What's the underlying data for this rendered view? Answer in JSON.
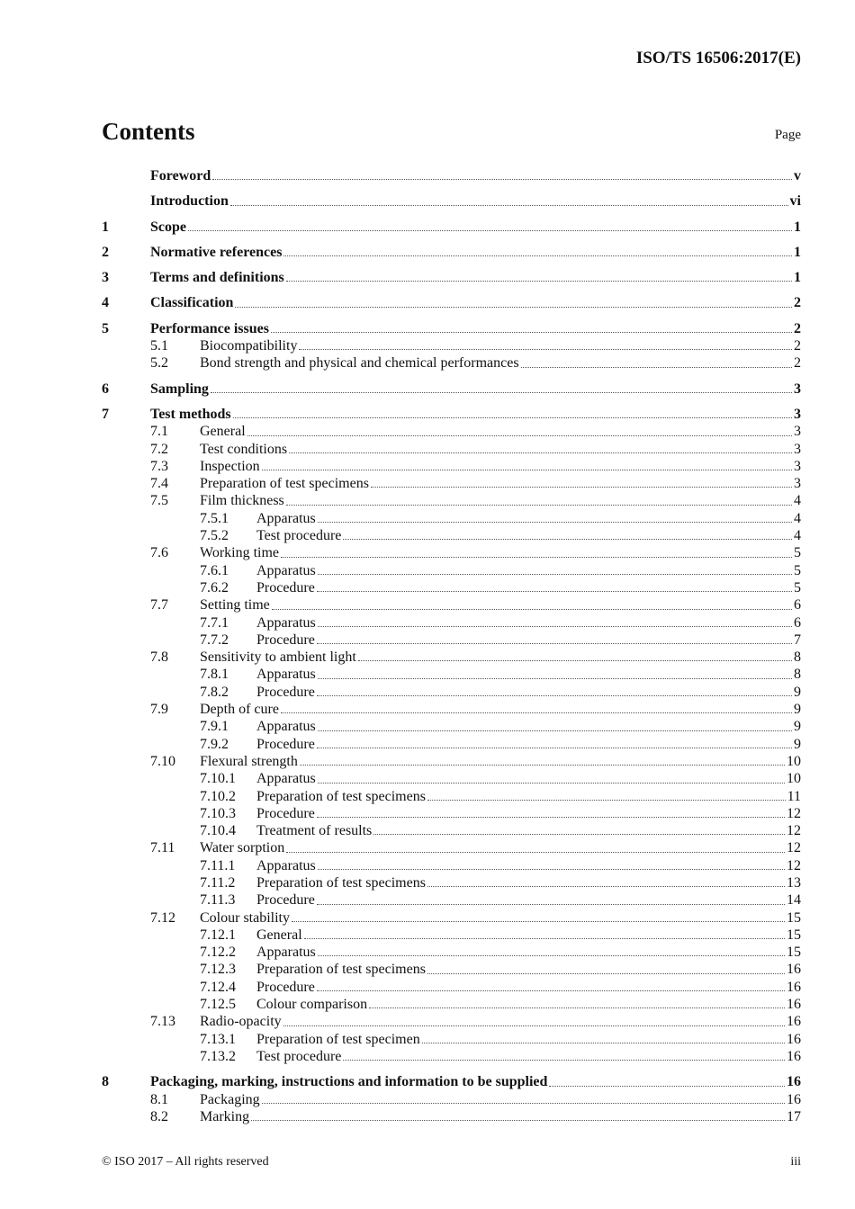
{
  "header": {
    "doc_id": "ISO/TS 16506:2017(E)"
  },
  "contents": {
    "title": "Contents",
    "page_label": "Page"
  },
  "entries": [
    {
      "level": 1,
      "num": "",
      "title": "Foreword",
      "page": "v"
    },
    {
      "level": 1,
      "num": "",
      "title": "Introduction",
      "page": "vi"
    },
    {
      "level": 1,
      "num": "1",
      "title": "Scope",
      "page": "1"
    },
    {
      "level": 1,
      "num": "2",
      "title": "Normative references",
      "page": "1"
    },
    {
      "level": 1,
      "num": "3",
      "title": "Terms and definitions",
      "page": "1"
    },
    {
      "level": 1,
      "num": "4",
      "title": "Classification",
      "page": "2"
    },
    {
      "level": 1,
      "num": "5",
      "title": "Performance issues",
      "page": "2"
    },
    {
      "level": 2,
      "num": "5.1",
      "title": "Biocompatibility",
      "page": "2"
    },
    {
      "level": 2,
      "num": "5.2",
      "title": "Bond strength and physical and chemical performances",
      "page": "2"
    },
    {
      "level": 1,
      "num": "6",
      "title": "Sampling",
      "page": "3"
    },
    {
      "level": 1,
      "num": "7",
      "title": "Test methods",
      "page": "3"
    },
    {
      "level": 2,
      "num": "7.1",
      "title": "General",
      "page": "3"
    },
    {
      "level": 2,
      "num": "7.2",
      "title": "Test conditions",
      "page": "3"
    },
    {
      "level": 2,
      "num": "7.3",
      "title": "Inspection",
      "page": "3"
    },
    {
      "level": 2,
      "num": "7.4",
      "title": "Preparation of test specimens",
      "page": "3"
    },
    {
      "level": 2,
      "num": "7.5",
      "title": "Film thickness",
      "page": "4"
    },
    {
      "level": 3,
      "num": "7.5.1",
      "title": "Apparatus",
      "page": "4"
    },
    {
      "level": 3,
      "num": "7.5.2",
      "title": "Test procedure",
      "page": "4"
    },
    {
      "level": 2,
      "num": "7.6",
      "title": "Working time",
      "page": "5"
    },
    {
      "level": 3,
      "num": "7.6.1",
      "title": "Apparatus",
      "page": "5"
    },
    {
      "level": 3,
      "num": "7.6.2",
      "title": "Procedure",
      "page": "5"
    },
    {
      "level": 2,
      "num": "7.7",
      "title": "Setting time",
      "page": "6"
    },
    {
      "level": 3,
      "num": "7.7.1",
      "title": "Apparatus",
      "page": "6"
    },
    {
      "level": 3,
      "num": "7.7.2",
      "title": "Procedure",
      "page": "7"
    },
    {
      "level": 2,
      "num": "7.8",
      "title": "Sensitivity to ambient light",
      "page": "8"
    },
    {
      "level": 3,
      "num": "7.8.1",
      "title": "Apparatus",
      "page": "8"
    },
    {
      "level": 3,
      "num": "7.8.2",
      "title": "Procedure",
      "page": "9"
    },
    {
      "level": 2,
      "num": "7.9",
      "title": "Depth of cure",
      "page": "9"
    },
    {
      "level": 3,
      "num": "7.9.1",
      "title": "Apparatus",
      "page": "9"
    },
    {
      "level": 3,
      "num": "7.9.2",
      "title": "Procedure",
      "page": "9"
    },
    {
      "level": 2,
      "num": "7.10",
      "title": "Flexural strength",
      "page": "10"
    },
    {
      "level": 3,
      "num": "7.10.1",
      "title": "Apparatus",
      "page": "10"
    },
    {
      "level": 3,
      "num": "7.10.2",
      "title": "Preparation of test specimens",
      "page": "11"
    },
    {
      "level": 3,
      "num": "7.10.3",
      "title": "Procedure",
      "page": "12"
    },
    {
      "level": 3,
      "num": "7.10.4",
      "title": "Treatment of results",
      "page": "12"
    },
    {
      "level": 2,
      "num": "7.11",
      "title": "Water sorption",
      "page": "12"
    },
    {
      "level": 3,
      "num": "7.11.1",
      "title": "Apparatus",
      "page": "12"
    },
    {
      "level": 3,
      "num": "7.11.2",
      "title": "Preparation of test specimens",
      "page": "13"
    },
    {
      "level": 3,
      "num": "7.11.3",
      "title": "Procedure",
      "page": "14"
    },
    {
      "level": 2,
      "num": "7.12",
      "title": "Colour stability",
      "page": "15"
    },
    {
      "level": 3,
      "num": "7.12.1",
      "title": "General",
      "page": "15"
    },
    {
      "level": 3,
      "num": "7.12.2",
      "title": "Apparatus",
      "page": "15"
    },
    {
      "level": 3,
      "num": "7.12.3",
      "title": "Preparation of test specimens",
      "page": "16"
    },
    {
      "level": 3,
      "num": "7.12.4",
      "title": "Procedure",
      "page": "16"
    },
    {
      "level": 3,
      "num": "7.12.5",
      "title": "Colour comparison",
      "page": "16"
    },
    {
      "level": 2,
      "num": "7.13",
      "title": "Radio-opacity",
      "page": "16"
    },
    {
      "level": 3,
      "num": "7.13.1",
      "title": "Preparation of test specimen",
      "page": "16"
    },
    {
      "level": 3,
      "num": "7.13.2",
      "title": "Test procedure",
      "page": "16"
    },
    {
      "level": 1,
      "num": "8",
      "title": "Packaging, marking, instructions and information to be supplied",
      "page": "16"
    },
    {
      "level": 2,
      "num": "8.1",
      "title": "Packaging",
      "page": "16"
    },
    {
      "level": 2,
      "num": "8.2",
      "title": "Marking",
      "page": "17"
    }
  ],
  "footer": {
    "copyright": "© ISO 2017 – All rights reserved",
    "page_number": "iii"
  }
}
